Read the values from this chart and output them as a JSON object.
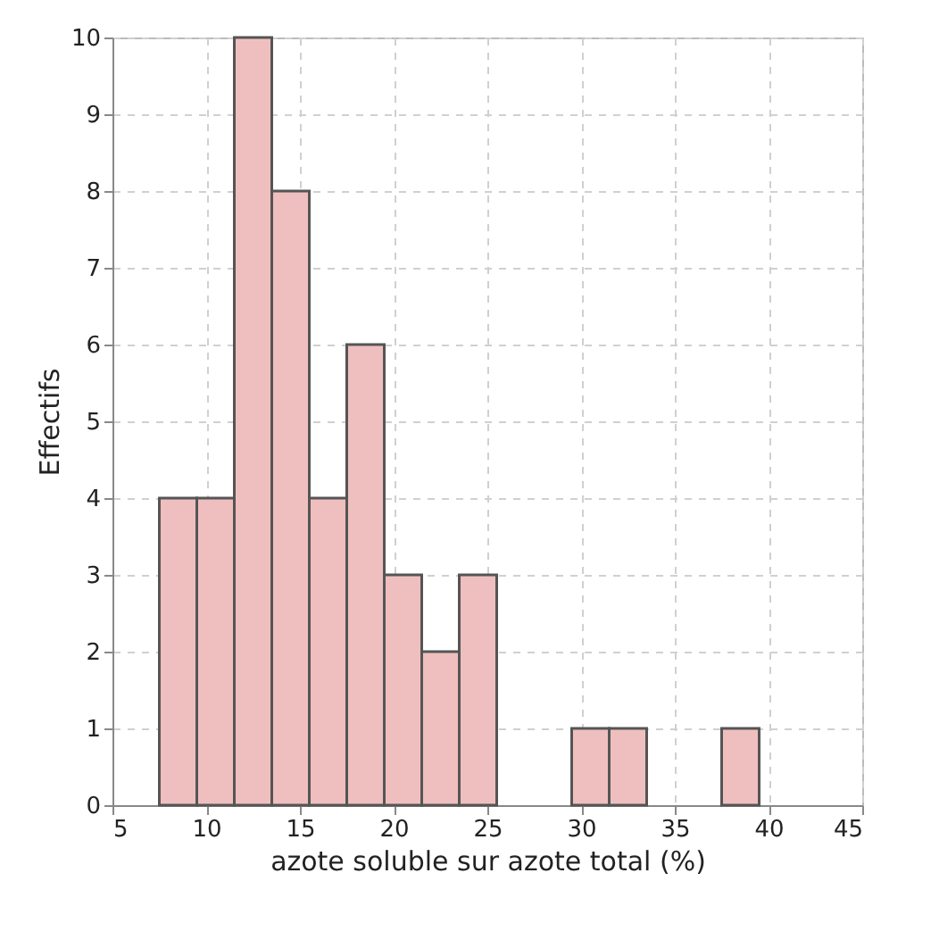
{
  "chart_data": {
    "type": "histogram",
    "xlabel": "azote soluble sur azote total (%)",
    "ylabel": "Effectifs",
    "bins": [
      7.5,
      9.5,
      11.5,
      13.5,
      15.5,
      17.5,
      19.5,
      21.5,
      23.5,
      25.5,
      27.5,
      29.5,
      31.5,
      33.5,
      35.5,
      37.5,
      39.5
    ],
    "values": [
      4,
      4,
      10,
      8,
      4,
      6,
      3,
      2,
      3,
      0,
      0,
      1,
      1,
      0,
      0,
      1
    ],
    "color": "#efbfbf",
    "xlim": [
      5,
      45
    ],
    "xticks": [
      5,
      10,
      15,
      20,
      25,
      30,
      35,
      40,
      45
    ],
    "ylim": [
      0,
      10
    ],
    "yticks": [
      0,
      1,
      2,
      3,
      4,
      5,
      6,
      7,
      8,
      9,
      10
    ],
    "grid": true
  }
}
